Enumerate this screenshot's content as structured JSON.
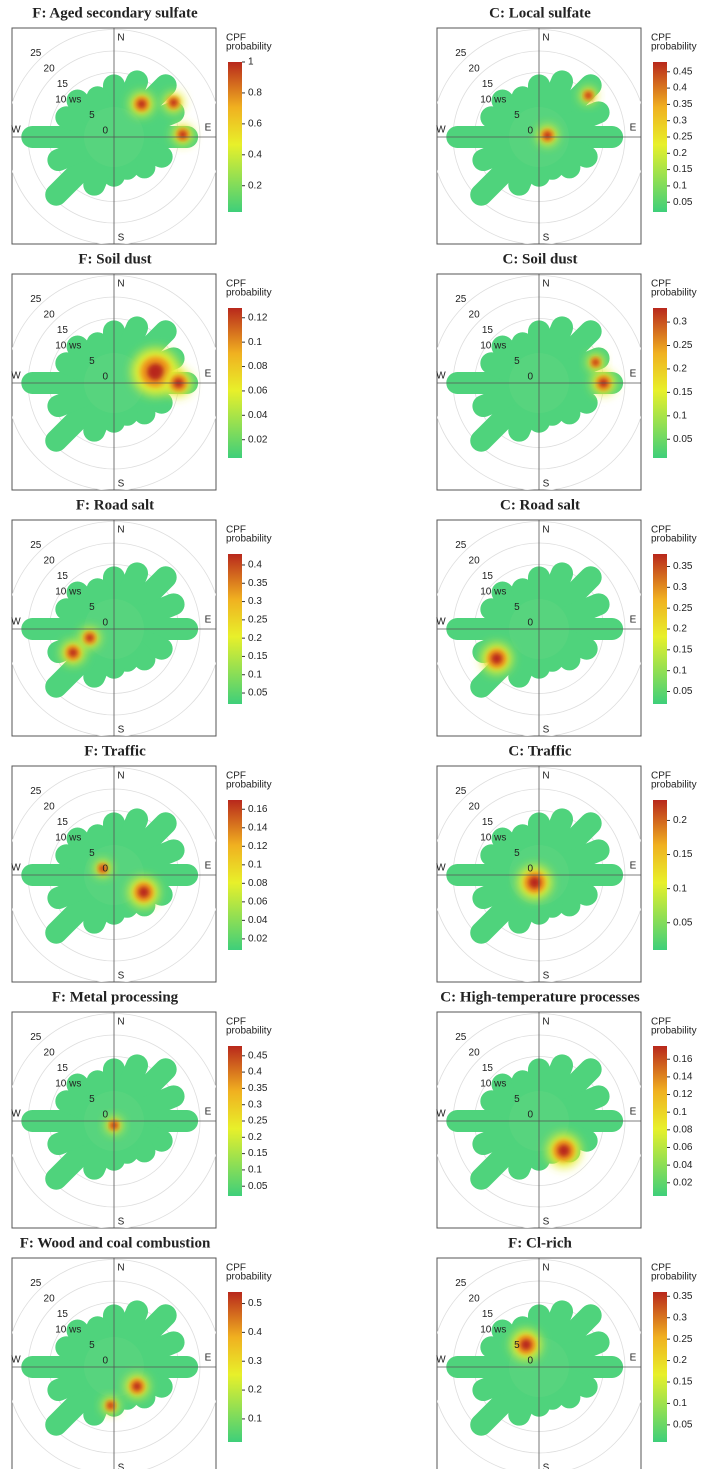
{
  "chart_data": [
    {
      "type": "polar",
      "title": "F: Aged secondary sulfate",
      "directions": [
        "N",
        "E",
        "S",
        "W"
      ],
      "rticks": [
        0,
        5,
        {
          "value": 10,
          "label": "10 ws"
        },
        15,
        20,
        25
      ],
      "colorbar_label": [
        "CPF",
        "probability"
      ],
      "clim": [
        0.03,
        1
      ],
      "cticks": [
        0.2,
        0.4,
        0.6,
        0.8,
        1
      ]
    },
    {
      "type": "polar",
      "title": "C: Local sulfate",
      "directions": [
        "N",
        "E",
        "S",
        "W"
      ],
      "rticks": [
        0,
        5,
        {
          "value": 10,
          "label": "10 ws"
        },
        15,
        20,
        25
      ],
      "colorbar_label": [
        "CPF",
        "probability"
      ],
      "clim": [
        0.02,
        0.48
      ],
      "cticks": [
        0.05,
        0.1,
        0.15,
        0.2,
        0.25,
        0.3,
        0.35,
        0.4,
        0.45
      ]
    },
    {
      "type": "polar",
      "title": "F: Soil dust",
      "directions": [
        "N",
        "E",
        "S",
        "W"
      ],
      "rticks": [
        0,
        5,
        {
          "value": 10,
          "label": "10 ws"
        },
        15,
        20,
        25
      ],
      "colorbar_label": [
        "CPF",
        "probability"
      ],
      "clim": [
        0.005,
        0.128
      ],
      "cticks": [
        0.02,
        0.04,
        0.06,
        0.08,
        0.1,
        0.12
      ]
    },
    {
      "type": "polar",
      "title": "C: Soil dust",
      "directions": [
        "N",
        "E",
        "S",
        "W"
      ],
      "rticks": [
        0,
        5,
        {
          "value": 10,
          "label": "10 ws"
        },
        15,
        20,
        25
      ],
      "colorbar_label": [
        "CPF",
        "probability"
      ],
      "clim": [
        0.01,
        0.33
      ],
      "cticks": [
        0.05,
        0.1,
        0.15,
        0.2,
        0.25,
        0.3
      ]
    },
    {
      "type": "polar",
      "title": "F: Road salt",
      "directions": [
        "N",
        "E",
        "S",
        "W"
      ],
      "rticks": [
        0,
        5,
        {
          "value": 10,
          "label": "10 ws"
        },
        15,
        20,
        25
      ],
      "colorbar_label": [
        "CPF",
        "probability"
      ],
      "clim": [
        0.02,
        0.43
      ],
      "cticks": [
        0.05,
        0.1,
        0.15,
        0.2,
        0.25,
        0.3,
        0.35,
        0.4
      ]
    },
    {
      "type": "polar",
      "title": "C: Road salt",
      "directions": [
        "N",
        "E",
        "S",
        "W"
      ],
      "rticks": [
        0,
        5,
        {
          "value": 10,
          "label": "10 ws"
        },
        15,
        20,
        25
      ],
      "colorbar_label": [
        "CPF",
        "probability"
      ],
      "clim": [
        0.02,
        0.38
      ],
      "cticks": [
        0.05,
        0.1,
        0.15,
        0.2,
        0.25,
        0.3,
        0.35
      ]
    },
    {
      "type": "polar",
      "title": "F: Traffic",
      "directions": [
        "N",
        "E",
        "S",
        "W"
      ],
      "rticks": [
        0,
        5,
        {
          "value": 10,
          "label": "10 ws"
        },
        15,
        20,
        25
      ],
      "colorbar_label": [
        "CPF",
        "probability"
      ],
      "clim": [
        0.008,
        0.17
      ],
      "cticks": [
        0.02,
        0.04,
        0.06,
        0.08,
        0.1,
        0.12,
        0.14,
        0.16
      ]
    },
    {
      "type": "polar",
      "title": "C: Traffic",
      "directions": [
        "N",
        "E",
        "S",
        "W"
      ],
      "rticks": [
        0,
        5,
        {
          "value": 10,
          "label": "10 ws"
        },
        15,
        20,
        25
      ],
      "colorbar_label": [
        "CPF",
        "probability"
      ],
      "clim": [
        0.01,
        0.23
      ],
      "cticks": [
        0.05,
        0.1,
        0.15,
        0.2
      ]
    },
    {
      "type": "polar",
      "title": "F: Metal processing",
      "directions": [
        "N",
        "E",
        "S",
        "W"
      ],
      "rticks": [
        0,
        5,
        {
          "value": 10,
          "label": "10 ws"
        },
        15,
        20,
        25
      ],
      "colorbar_label": [
        "CPF",
        "probability"
      ],
      "clim": [
        0.02,
        0.48
      ],
      "cticks": [
        0.05,
        0.1,
        0.15,
        0.2,
        0.25,
        0.3,
        0.35,
        0.4,
        0.45
      ]
    },
    {
      "type": "polar",
      "title": "C: High-temperature processes",
      "directions": [
        "N",
        "E",
        "S",
        "W"
      ],
      "rticks": [
        0,
        5,
        {
          "value": 10,
          "label": "10 ws"
        },
        15,
        20,
        25
      ],
      "colorbar_label": [
        "CPF",
        "probability"
      ],
      "clim": [
        0.005,
        0.175
      ],
      "cticks": [
        0.02,
        0.04,
        0.06,
        0.08,
        0.1,
        0.12,
        0.14,
        0.16
      ]
    },
    {
      "type": "polar",
      "title": "F: Wood and coal combustion",
      "directions": [
        "N",
        "E",
        "S",
        "W"
      ],
      "rticks": [
        0,
        5,
        {
          "value": 10,
          "label": "10 ws"
        },
        15,
        20,
        25
      ],
      "colorbar_label": [
        "CPF",
        "probability"
      ],
      "clim": [
        0.02,
        0.54
      ],
      "cticks": [
        0.1,
        0.2,
        0.3,
        0.4,
        0.5
      ]
    },
    {
      "type": "polar",
      "title": "F: Cl-rich",
      "directions": [
        "N",
        "E",
        "S",
        "W"
      ],
      "rticks": [
        0,
        5,
        {
          "value": 10,
          "label": "10 ws"
        },
        15,
        20,
        25
      ],
      "colorbar_label": [
        "CPF",
        "probability"
      ],
      "clim": [
        0.01,
        0.36
      ],
      "cticks": [
        0.05,
        0.1,
        0.15,
        0.2,
        0.25,
        0.3,
        0.35
      ]
    }
  ]
}
